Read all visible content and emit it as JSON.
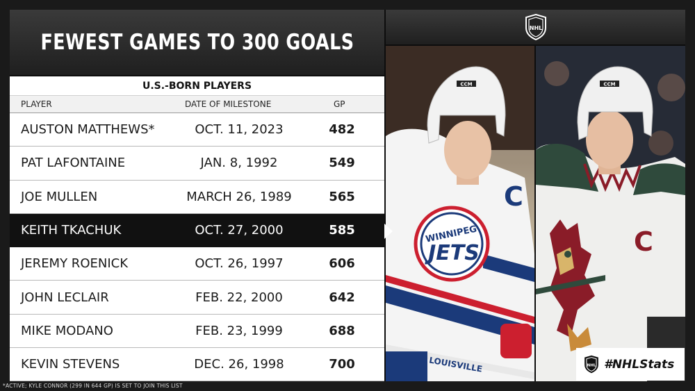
{
  "title": "FEWEST GAMES TO 300 GOALS",
  "subtitle": "U.S.-BORN PLAYERS",
  "columns": {
    "player": "PLAYER",
    "date": "DATE OF MILESTONE",
    "gp": "GP"
  },
  "rows": [
    {
      "player": "AUSTON MATTHEWS*",
      "date": "OCT. 11, 2023",
      "gp": "482",
      "highlighted": false
    },
    {
      "player": "PAT LAFONTAINE",
      "date": "JAN. 8, 1992",
      "gp": "549",
      "highlighted": false
    },
    {
      "player": "JOE MULLEN",
      "date": "MARCH 26, 1989",
      "gp": "565",
      "highlighted": false
    },
    {
      "player": "KEITH TKACHUK",
      "date": "OCT. 27, 2000",
      "gp": "585",
      "highlighted": true
    },
    {
      "player": "JEREMY ROENICK",
      "date": "OCT. 26, 1997",
      "gp": "606",
      "highlighted": false
    },
    {
      "player": "JOHN LECLAIR",
      "date": "FEB. 22, 2000",
      "gp": "642",
      "highlighted": false
    },
    {
      "player": "MIKE MODANO",
      "date": "FEB. 23, 1999",
      "gp": "688",
      "highlighted": false
    },
    {
      "player": "KEVIN STEVENS",
      "date": "DEC. 26, 1998",
      "gp": "700",
      "highlighted": false
    }
  ],
  "footnote": "*ACTIVE; KYLE CONNOR (299 IN 644 GP) IS SET TO JOIN THIS LIST",
  "photos": {
    "left": {
      "logo_text": "WINNIPEG",
      "captain_letter": "C",
      "stick_text": "LOUISVILLE"
    },
    "right": {
      "captain_letter": "C"
    }
  },
  "helmet_brand": "CCM",
  "badge": {
    "icon": "nhl-shield-icon",
    "text": "#NHLStats"
  },
  "colors": {
    "highlight_row": "#111111",
    "jets_blue": "#1b3a7a",
    "jets_red": "#cc1f2f",
    "coyotes_red": "#8a1c28"
  }
}
